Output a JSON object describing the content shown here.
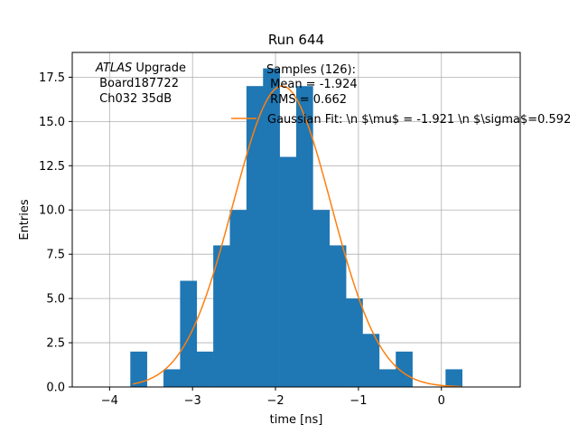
{
  "chart_data": {
    "type": "bar",
    "title": "Run 644",
    "xlabel": "time [ns]",
    "ylabel": "Entries",
    "xlim": [
      -4.45,
      0.95
    ],
    "ylim": [
      0,
      18.9
    ],
    "grid": true,
    "x_ticks": [
      -4,
      -3,
      -2,
      -1,
      0
    ],
    "x_tick_labels": [
      "−4",
      "−3",
      "−2",
      "−1",
      "0"
    ],
    "y_ticks": [
      0,
      2.5,
      5,
      7.5,
      10,
      12.5,
      15,
      17.5
    ],
    "y_tick_labels": [
      "0.0",
      "2.5",
      "5.0",
      "7.5",
      "10.0",
      "12.5",
      "15.0",
      "17.5"
    ],
    "bar_color": "#1f77b4",
    "fit_color": "#ff7f0e",
    "histogram": {
      "bin_edges": [
        -3.75,
        -3.55,
        -3.35,
        -3.15,
        -2.95,
        -2.75,
        -2.55,
        -2.35,
        -2.15,
        -1.95,
        -1.75,
        -1.55,
        -1.35,
        -1.15,
        -0.95,
        -0.75,
        -0.55,
        -0.35,
        -0.15,
        0.05,
        0.25,
        0.45
      ],
      "counts": [
        2,
        0,
        1,
        6,
        2,
        8,
        10,
        17,
        18,
        13,
        17,
        10,
        8,
        5,
        3,
        1,
        2,
        0,
        0,
        1,
        0
      ]
    },
    "fit": {
      "name": "Gaussian Fit: \\n $\\mu$ = -1.921 \\n $\\sigma$=0.592",
      "amplitude": 17.0,
      "mu": -1.921,
      "sigma": 0.592,
      "x_range": [
        -3.72,
        0.24
      ]
    },
    "legend_position": "upper-right",
    "annotations": {
      "atlas_italic": "ATLAS",
      "atlas_rest": " Upgrade",
      "board": " Board187722",
      "channel": " Ch032 35dB",
      "samples": "Samples (126):",
      "mean": " Mean = -1.924",
      "rms": " RMS = 0.662"
    }
  }
}
